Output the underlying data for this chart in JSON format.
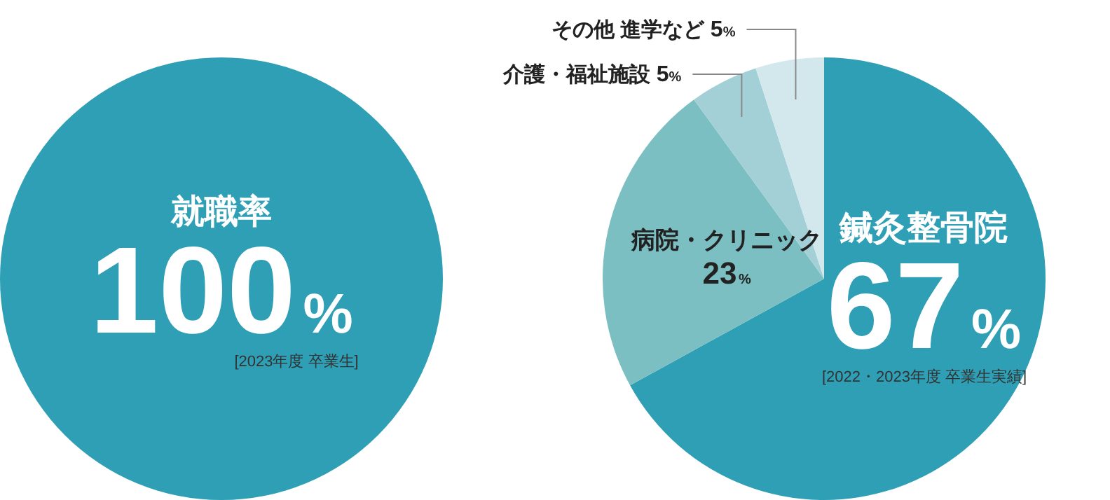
{
  "chart_data": [
    {
      "type": "pie",
      "categories": [
        "就職率"
      ],
      "values": [
        100
      ],
      "colors": [
        "#2e9fb4"
      ],
      "value_labels": [
        "100%"
      ],
      "annotations": [
        "[2023年度 卒業生]"
      ]
    },
    {
      "type": "pie",
      "categories": [
        "鍼灸整骨院",
        "病院・クリニック",
        "介護・福祉施設",
        "その他 進学など"
      ],
      "values": [
        67,
        23,
        5,
        5
      ],
      "colors": [
        "#2e9fb4",
        "#7bbfc2",
        "#a3d0d7",
        "#d3e8ed"
      ],
      "value_labels": [
        "67%",
        "23%",
        "5%",
        "5%"
      ],
      "annotations": [
        "[2022・2023年度 卒業生実績]"
      ]
    }
  ]
}
